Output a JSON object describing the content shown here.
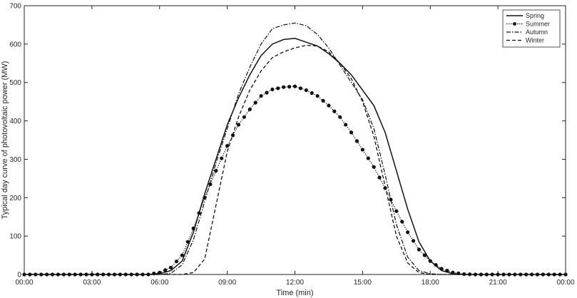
{
  "chart_data": {
    "type": "line",
    "xlabel": "Time (min)",
    "ylabel": "Typical day curve of photovoltaic power (MW)",
    "xlim": [
      0,
      24
    ],
    "ylim": [
      0,
      700
    ],
    "x_ticks": [
      "00:00",
      "03:00",
      "06:00",
      "09:00",
      "12:00",
      "15:00",
      "18:00",
      "21:00",
      "00:00"
    ],
    "y_ticks": [
      "0",
      "100",
      "200",
      "300",
      "400",
      "500",
      "600",
      "700"
    ],
    "legend_position": "top-right",
    "grid": false,
    "series": [
      {
        "name": "Spring",
        "style": "solid",
        "points": [
          [
            0,
            0
          ],
          [
            5.5,
            0
          ],
          [
            6,
            2
          ],
          [
            6.5,
            10
          ],
          [
            7,
            35
          ],
          [
            7.5,
            110
          ],
          [
            8,
            210
          ],
          [
            8.5,
            300
          ],
          [
            9,
            390
          ],
          [
            9.5,
            460
          ],
          [
            10,
            520
          ],
          [
            10.5,
            570
          ],
          [
            11,
            600
          ],
          [
            11.5,
            612
          ],
          [
            12,
            615
          ],
          [
            12.5,
            605
          ],
          [
            13,
            595
          ],
          [
            13.5,
            575
          ],
          [
            14,
            550
          ],
          [
            14.5,
            520
          ],
          [
            15,
            480
          ],
          [
            15.5,
            440
          ],
          [
            16,
            370
          ],
          [
            16.5,
            270
          ],
          [
            17,
            170
          ],
          [
            17.5,
            85
          ],
          [
            18,
            35
          ],
          [
            18.5,
            10
          ],
          [
            19,
            2
          ],
          [
            19.5,
            0
          ],
          [
            24,
            0
          ]
        ]
      },
      {
        "name": "Summer",
        "style": "dotted-marker",
        "points": [
          [
            0,
            0
          ],
          [
            5.5,
            0
          ],
          [
            6,
            5
          ],
          [
            6.5,
            18
          ],
          [
            7,
            50
          ],
          [
            7.5,
            120
          ],
          [
            8,
            200
          ],
          [
            8.5,
            270
          ],
          [
            9,
            335
          ],
          [
            9.5,
            390
          ],
          [
            10,
            430
          ],
          [
            10.5,
            465
          ],
          [
            11,
            482
          ],
          [
            11.5,
            488
          ],
          [
            12,
            490
          ],
          [
            12.5,
            480
          ],
          [
            13,
            465
          ],
          [
            13.5,
            440
          ],
          [
            14,
            410
          ],
          [
            14.5,
            370
          ],
          [
            15,
            325
          ],
          [
            15.5,
            280
          ],
          [
            16,
            225
          ],
          [
            16.5,
            165
          ],
          [
            17,
            110
          ],
          [
            17.5,
            65
          ],
          [
            18,
            35
          ],
          [
            18.5,
            15
          ],
          [
            19,
            5
          ],
          [
            19.5,
            1
          ],
          [
            20,
            0
          ],
          [
            24,
            0
          ]
        ]
      },
      {
        "name": "Autumn",
        "style": "dash-dot",
        "points": [
          [
            0,
            0
          ],
          [
            6,
            0
          ],
          [
            6.5,
            3
          ],
          [
            7,
            25
          ],
          [
            7.5,
            90
          ],
          [
            8,
            190
          ],
          [
            8.5,
            290
          ],
          [
            9,
            380
          ],
          [
            9.5,
            470
          ],
          [
            10,
            540
          ],
          [
            10.5,
            600
          ],
          [
            11,
            640
          ],
          [
            11.5,
            650
          ],
          [
            12,
            655
          ],
          [
            12.5,
            648
          ],
          [
            13,
            625
          ],
          [
            13.5,
            590
          ],
          [
            14,
            545
          ],
          [
            14.5,
            500
          ],
          [
            15,
            455
          ],
          [
            15.5,
            380
          ],
          [
            16,
            260
          ],
          [
            16.5,
            130
          ],
          [
            17,
            45
          ],
          [
            17.5,
            10
          ],
          [
            18,
            2
          ],
          [
            18.5,
            0
          ],
          [
            24,
            0
          ]
        ]
      },
      {
        "name": "Winter",
        "style": "dashed",
        "points": [
          [
            0,
            0
          ],
          [
            7,
            0
          ],
          [
            7.5,
            5
          ],
          [
            8,
            40
          ],
          [
            8.5,
            180
          ],
          [
            9,
            320
          ],
          [
            9.5,
            410
          ],
          [
            10,
            480
          ],
          [
            10.5,
            530
          ],
          [
            11,
            565
          ],
          [
            11.5,
            580
          ],
          [
            12,
            590
          ],
          [
            12.5,
            597
          ],
          [
            13,
            595
          ],
          [
            13.5,
            580
          ],
          [
            14,
            550
          ],
          [
            14.5,
            510
          ],
          [
            15,
            450
          ],
          [
            15.5,
            360
          ],
          [
            16,
            230
          ],
          [
            16.5,
            100
          ],
          [
            17,
            30
          ],
          [
            17.5,
            5
          ],
          [
            18,
            0
          ],
          [
            24,
            0
          ]
        ]
      }
    ]
  }
}
